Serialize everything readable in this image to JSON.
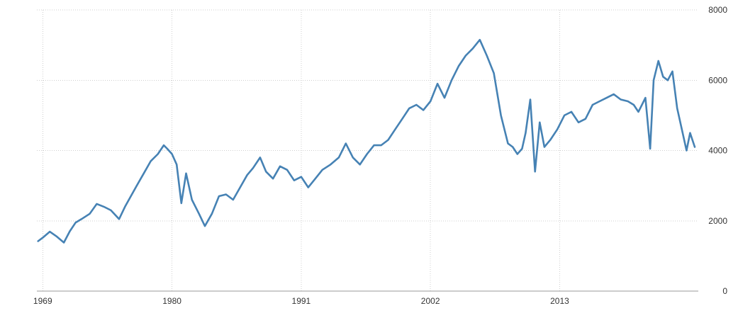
{
  "chart_data": {
    "type": "line",
    "title": "",
    "xlabel": "",
    "ylabel": "",
    "x_ticks": [
      "1969",
      "1980",
      "1991",
      "2002",
      "2013"
    ],
    "y_ticks": [
      "0",
      "2000",
      "4000",
      "6000",
      "8000"
    ],
    "xlim": [
      1968.5,
      2024.8
    ],
    "ylim": [
      0,
      8000
    ],
    "grid": true,
    "legend": "none",
    "colors": {
      "line": "#4682b4",
      "grid": "#cfcfcf",
      "text": "#333333"
    },
    "series": [
      {
        "x": [
          1968.6,
          1969.0,
          1969.6,
          1970.2,
          1970.8,
          1971.3,
          1971.8,
          1972.3,
          1973.0,
          1973.6,
          1974.2,
          1974.8,
          1975.5,
          1976.0,
          1976.5,
          1977.0,
          1977.6,
          1978.2,
          1978.8,
          1979.3,
          1979.6,
          1980.0,
          1980.4,
          1980.8,
          1981.2,
          1981.7,
          1982.3,
          1982.8,
          1983.4,
          1984.0,
          1984.6,
          1985.2,
          1985.8,
          1986.4,
          1986.9,
          1987.5,
          1988.0,
          1988.6,
          1989.2,
          1989.8,
          1990.4,
          1991.0,
          1991.6,
          1992.2,
          1992.8,
          1993.5,
          1994.2,
          1994.8,
          1995.4,
          1996.0,
          1996.6,
          1997.2,
          1997.8,
          1998.4,
          1999.0,
          1999.6,
          2000.2,
          2000.8,
          2001.4,
          2002.0,
          2002.6,
          2003.2,
          2003.8,
          2004.4,
          2005.0,
          2005.6,
          2006.2,
          2006.8,
          2007.4,
          2008.0,
          2008.6,
          2009.0,
          2009.4,
          2009.8,
          2010.1,
          2010.5,
          2010.9,
          2011.3,
          2011.7,
          2012.2,
          2012.8,
          2013.4,
          2014.0,
          2014.6,
          2015.2,
          2015.8,
          2016.4,
          2017.0,
          2017.6,
          2018.2,
          2018.8,
          2019.3,
          2019.7,
          2020.0,
          2020.3,
          2020.7,
          2021.0,
          2021.4,
          2021.8,
          2022.2,
          2022.6,
          2023.0,
          2023.4,
          2023.8,
          2024.1,
          2024.5
        ],
        "y": [
          1420,
          1520,
          1690,
          1550,
          1380,
          1700,
          1950,
          2050,
          2200,
          2480,
          2400,
          2300,
          2050,
          2400,
          2700,
          3000,
          3350,
          3700,
          3900,
          4150,
          4050,
          3900,
          3600,
          2500,
          3350,
          2600,
          2200,
          1850,
          2200,
          2700,
          2750,
          2600,
          2950,
          3300,
          3500,
          3800,
          3400,
          3200,
          3550,
          3450,
          3150,
          3250,
          2950,
          3200,
          3450,
          3600,
          3800,
          4200,
          3800,
          3600,
          3900,
          4150,
          4150,
          4300,
          4600,
          4900,
          5200,
          5300,
          5150,
          5400,
          5900,
          5500,
          6000,
          6400,
          6700,
          6900,
          7150,
          6700,
          6200,
          5000,
          4200,
          4100,
          3900,
          4050,
          4500,
          5450,
          3400,
          4800,
          4100,
          4300,
          4600,
          5000,
          5100,
          4800,
          4900,
          5300,
          5400,
          5500,
          5600,
          5450,
          5400,
          5300,
          5100,
          5300,
          5500,
          4050,
          6000,
          6550,
          6100,
          6000,
          6250,
          5200,
          4600,
          4000,
          4500,
          4100
        ]
      }
    ]
  }
}
